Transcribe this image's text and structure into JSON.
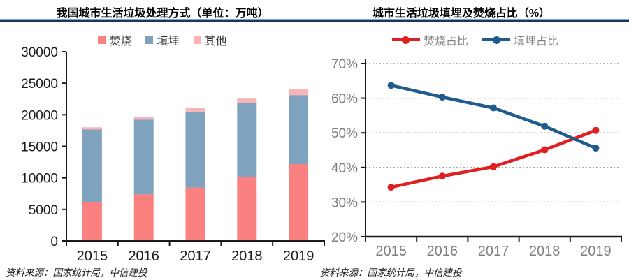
{
  "header": {
    "left_title": "我国城市生活垃圾处理方式（单位：万吨）",
    "right_title": "城市生活垃圾填埋及焚烧占比（%）",
    "rule_dark": "#17375E",
    "rule_light": "#7EA6D4"
  },
  "source_left": "资料来源：国家统计局，中信建投",
  "source_right": "资料来源：国家统计局，中信建投",
  "colors": {
    "axis": "#1a1a1a",
    "left_label": "#1a1a1a",
    "right_label": "#7f7f7f",
    "gridline": "#8c8c8c"
  },
  "chart_data": [
    {
      "type": "bar",
      "stacked": true,
      "title": "我国城市生活垃圾处理方式（单位：万吨）",
      "categories": [
        "2015",
        "2016",
        "2017",
        "2018",
        "2019"
      ],
      "series": [
        {
          "name": "焚烧",
          "color": "#FB8181",
          "values": [
            6176,
            7378,
            8463,
            10185,
            12174
          ]
        },
        {
          "name": "填埋",
          "color": "#7FA3BF",
          "values": [
            11483,
            11866,
            12038,
            11706,
            10948
          ]
        },
        {
          "name": "其他",
          "color": "#F9B3B4",
          "values": [
            354,
            430,
            534,
            674,
            891
          ]
        }
      ],
      "ylabel": "万吨",
      "ylim": [
        0,
        30000
      ],
      "ytick_step": 5000,
      "grid": false,
      "legend_position": "top"
    },
    {
      "type": "line",
      "title": "城市生活垃圾填埋及焚烧占比（%）",
      "categories": [
        "2015",
        "2016",
        "2017",
        "2018",
        "2019"
      ],
      "series": [
        {
          "name": "焚烧占比",
          "color": "#E02020",
          "values": [
            34.3,
            37.5,
            40.2,
            45.1,
            50.7
          ]
        },
        {
          "name": "填埋占比",
          "color": "#1F5B8E",
          "values": [
            63.7,
            60.3,
            57.2,
            51.9,
            45.6
          ]
        }
      ],
      "ylabel": "%",
      "ylim": [
        20,
        70
      ],
      "ytick_step": 10,
      "ytick_suffix": "%",
      "grid": true,
      "legend_position": "top"
    }
  ]
}
